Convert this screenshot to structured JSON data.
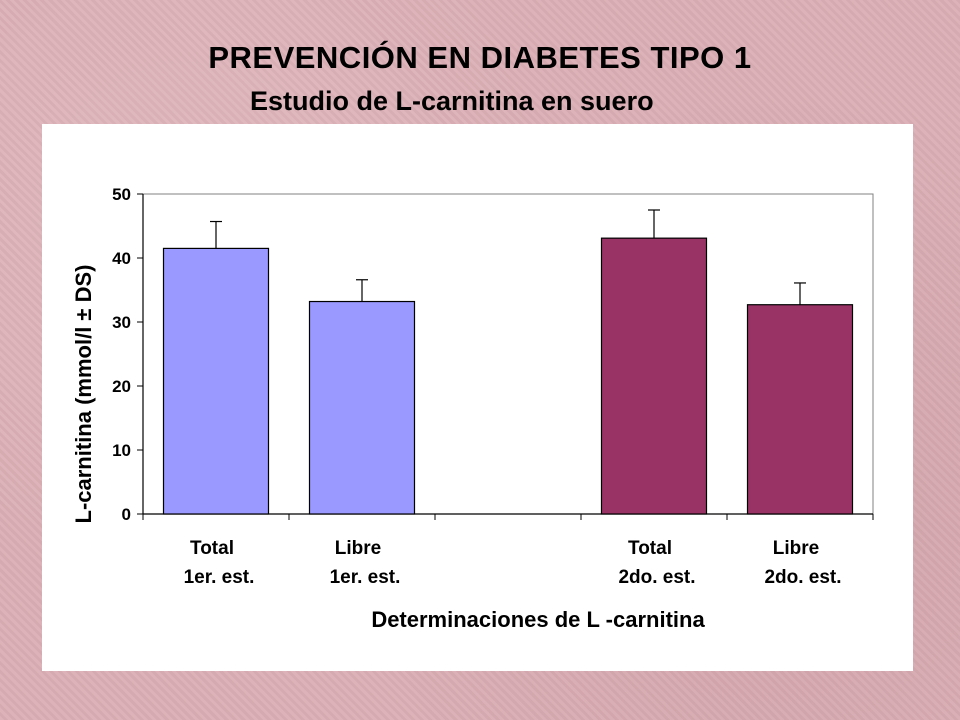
{
  "page": {
    "title": "PREVENCIÓN EN DIABETES TIPO 1",
    "subtitle": "Estudio de L-carnitina en suero"
  },
  "chart_data": {
    "type": "bar",
    "xlabel": "Determinaciones de L -carnitina",
    "ylabel": "L-carnitina (mmol/l ± DS)",
    "ylim": [
      0,
      50
    ],
    "yticks": [
      "0",
      "10",
      "20",
      "30",
      "40",
      "50"
    ],
    "grid": false,
    "legend": "none",
    "categories": [
      [
        "Total",
        "1er. est."
      ],
      [
        "Libre",
        "1er. est."
      ],
      [
        "",
        ""
      ],
      [
        "Total",
        "2do. est."
      ],
      [
        "Libre",
        "2do. est."
      ]
    ],
    "values": [
      41.5,
      33.2,
      null,
      43.1,
      32.7
    ],
    "error": [
      4.2,
      3.4,
      null,
      4.4,
      3.4
    ],
    "colors": [
      "#9999ff",
      "#9999ff",
      null,
      "#993366",
      "#993366"
    ]
  }
}
